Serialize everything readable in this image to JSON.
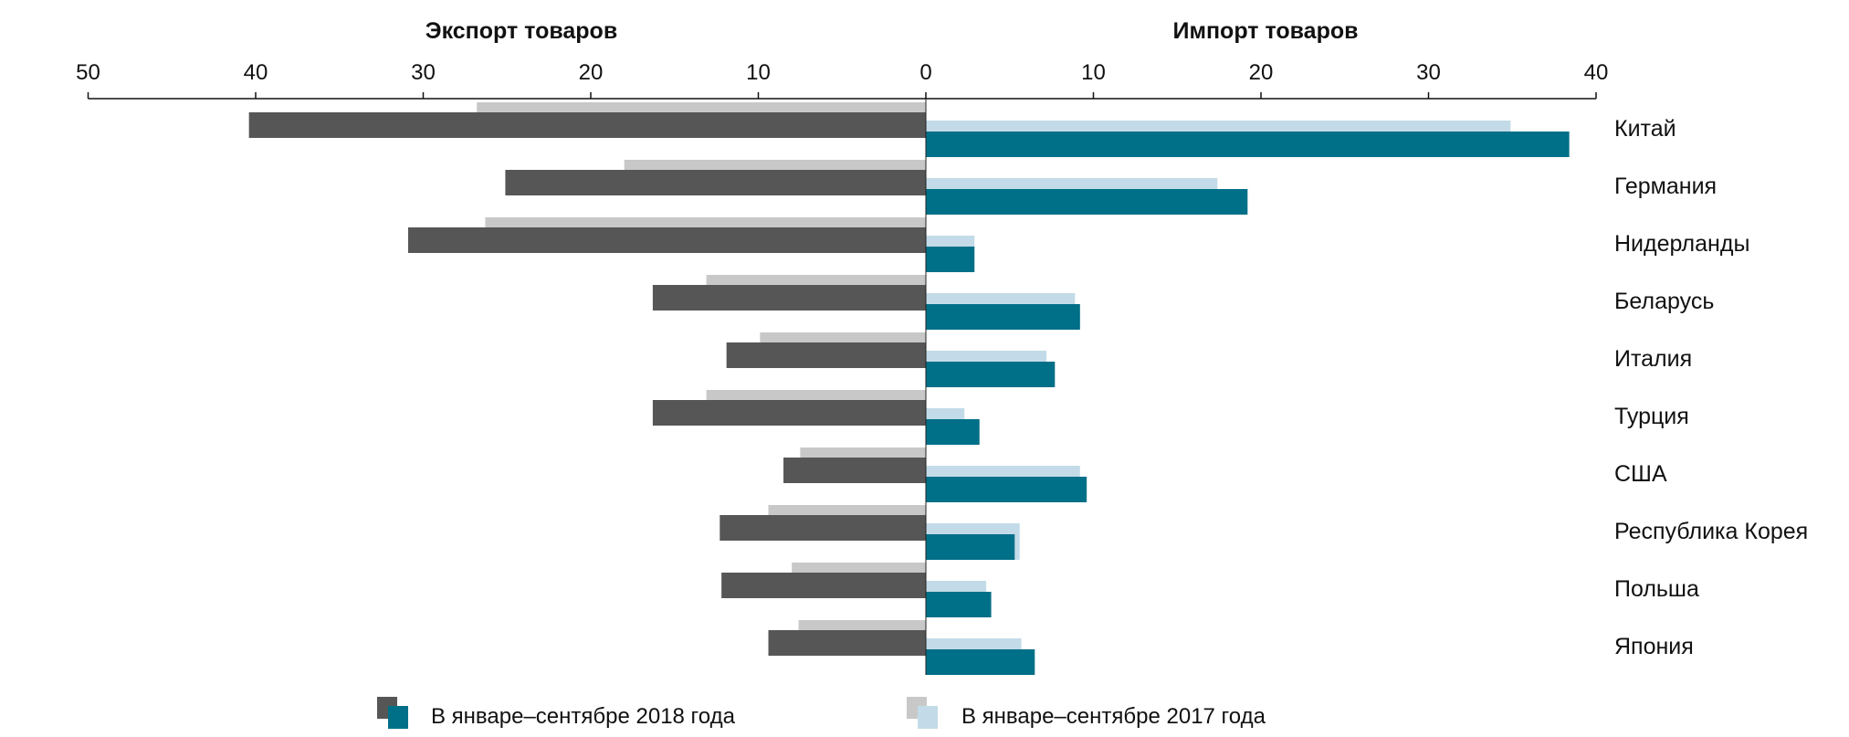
{
  "chart_data": {
    "type": "bar",
    "orientation": "horizontal-diverging",
    "panels": [
      {
        "title": "Экспорт товаров",
        "direction": "left",
        "xlim": [
          0,
          50
        ],
        "ticks": [
          "0",
          "10",
          "20",
          "30",
          "40",
          "50"
        ]
      },
      {
        "title": "Импорт товаров",
        "direction": "right",
        "xlim": [
          0,
          40
        ],
        "ticks": [
          "0",
          "10",
          "20",
          "30",
          "40"
        ]
      }
    ],
    "categories": [
      "Китай",
      "Германия",
      "Нидерланды",
      "Беларусь",
      "Италия",
      "Турция",
      "США",
      "Республика Корея",
      "Польша",
      "Япония"
    ],
    "series": [
      {
        "name": "Экспорт 2018",
        "legend": "В январе–сентябре 2018 года",
        "panel": "export",
        "color": "#555655",
        "values": [
          40.4,
          25.1,
          30.9,
          16.3,
          11.9,
          16.3,
          8.5,
          12.3,
          12.2,
          9.4
        ]
      },
      {
        "name": "Экспорт 2017",
        "legend": "В январе–сентябре 2017 года",
        "panel": "export",
        "color": "#c8c8c8",
        "values": [
          26.8,
          18.0,
          26.3,
          13.1,
          9.9,
          13.1,
          7.5,
          9.4,
          8.0,
          7.6
        ]
      },
      {
        "name": "Импорт 2018",
        "legend": "В январе–сентябре 2018 года",
        "panel": "import",
        "color": "#006f88",
        "values": [
          38.4,
          19.2,
          2.9,
          9.2,
          7.7,
          3.2,
          9.6,
          5.3,
          3.9,
          6.5
        ]
      },
      {
        "name": "Импорт 2017",
        "legend": "В январе–сентябре 2017 года",
        "panel": "import",
        "color": "#c3dbe8",
        "values": [
          34.9,
          17.4,
          2.9,
          8.9,
          7.2,
          2.3,
          9.2,
          5.6,
          3.6,
          5.7
        ]
      }
    ],
    "legend": {
      "position": "bottom",
      "items": [
        "В январе–сентябре 2018 года",
        "В январе–сентябре 2017 года"
      ]
    },
    "grid": false
  }
}
